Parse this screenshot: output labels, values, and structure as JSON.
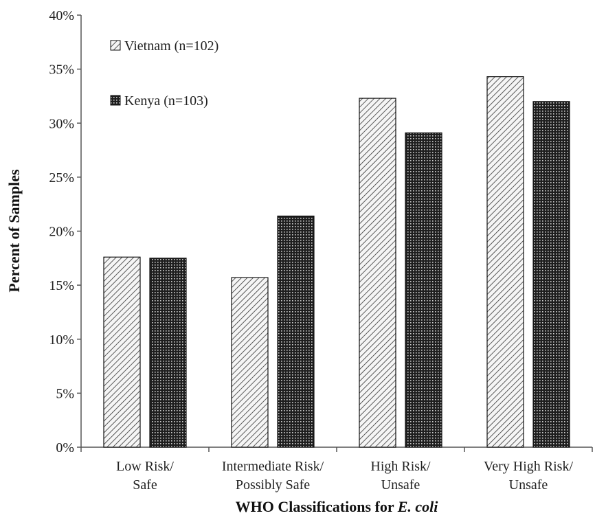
{
  "chart_data": {
    "type": "bar",
    "categories": [
      [
        "Low Risk/",
        "Safe"
      ],
      [
        "Intermediate Risk/",
        "Possibly Safe"
      ],
      [
        "High Risk/",
        "Unsafe"
      ],
      [
        "Very High Risk/",
        "Unsafe"
      ]
    ],
    "series": [
      {
        "name": "Vietnam (n=102)",
        "values": [
          17.6,
          15.7,
          32.3,
          34.3
        ],
        "pattern": "diagonal-hatch"
      },
      {
        "name": "Kenya (n=103)",
        "values": [
          17.5,
          21.4,
          29.1,
          32.0
        ],
        "pattern": "crosshatch-dots"
      }
    ],
    "ylim": [
      0,
      40
    ],
    "yticks": [
      "0%",
      "5%",
      "10%",
      "15%",
      "20%",
      "25%",
      "30%",
      "35%",
      "40%"
    ],
    "ytick_values": [
      0,
      5,
      10,
      15,
      20,
      25,
      30,
      35,
      40
    ],
    "ylabel": "Percent of Samples",
    "xlabel_prefix": "WHO Classifications for ",
    "xlabel_italic": "E. coli",
    "legend_position": "top-left",
    "grid": false,
    "colors": {
      "axis": "#555555",
      "bar_stroke": "#111111",
      "hatch_light": "#ffffff",
      "hatch_line": "#333333",
      "dark_fill": "#222222"
    }
  }
}
